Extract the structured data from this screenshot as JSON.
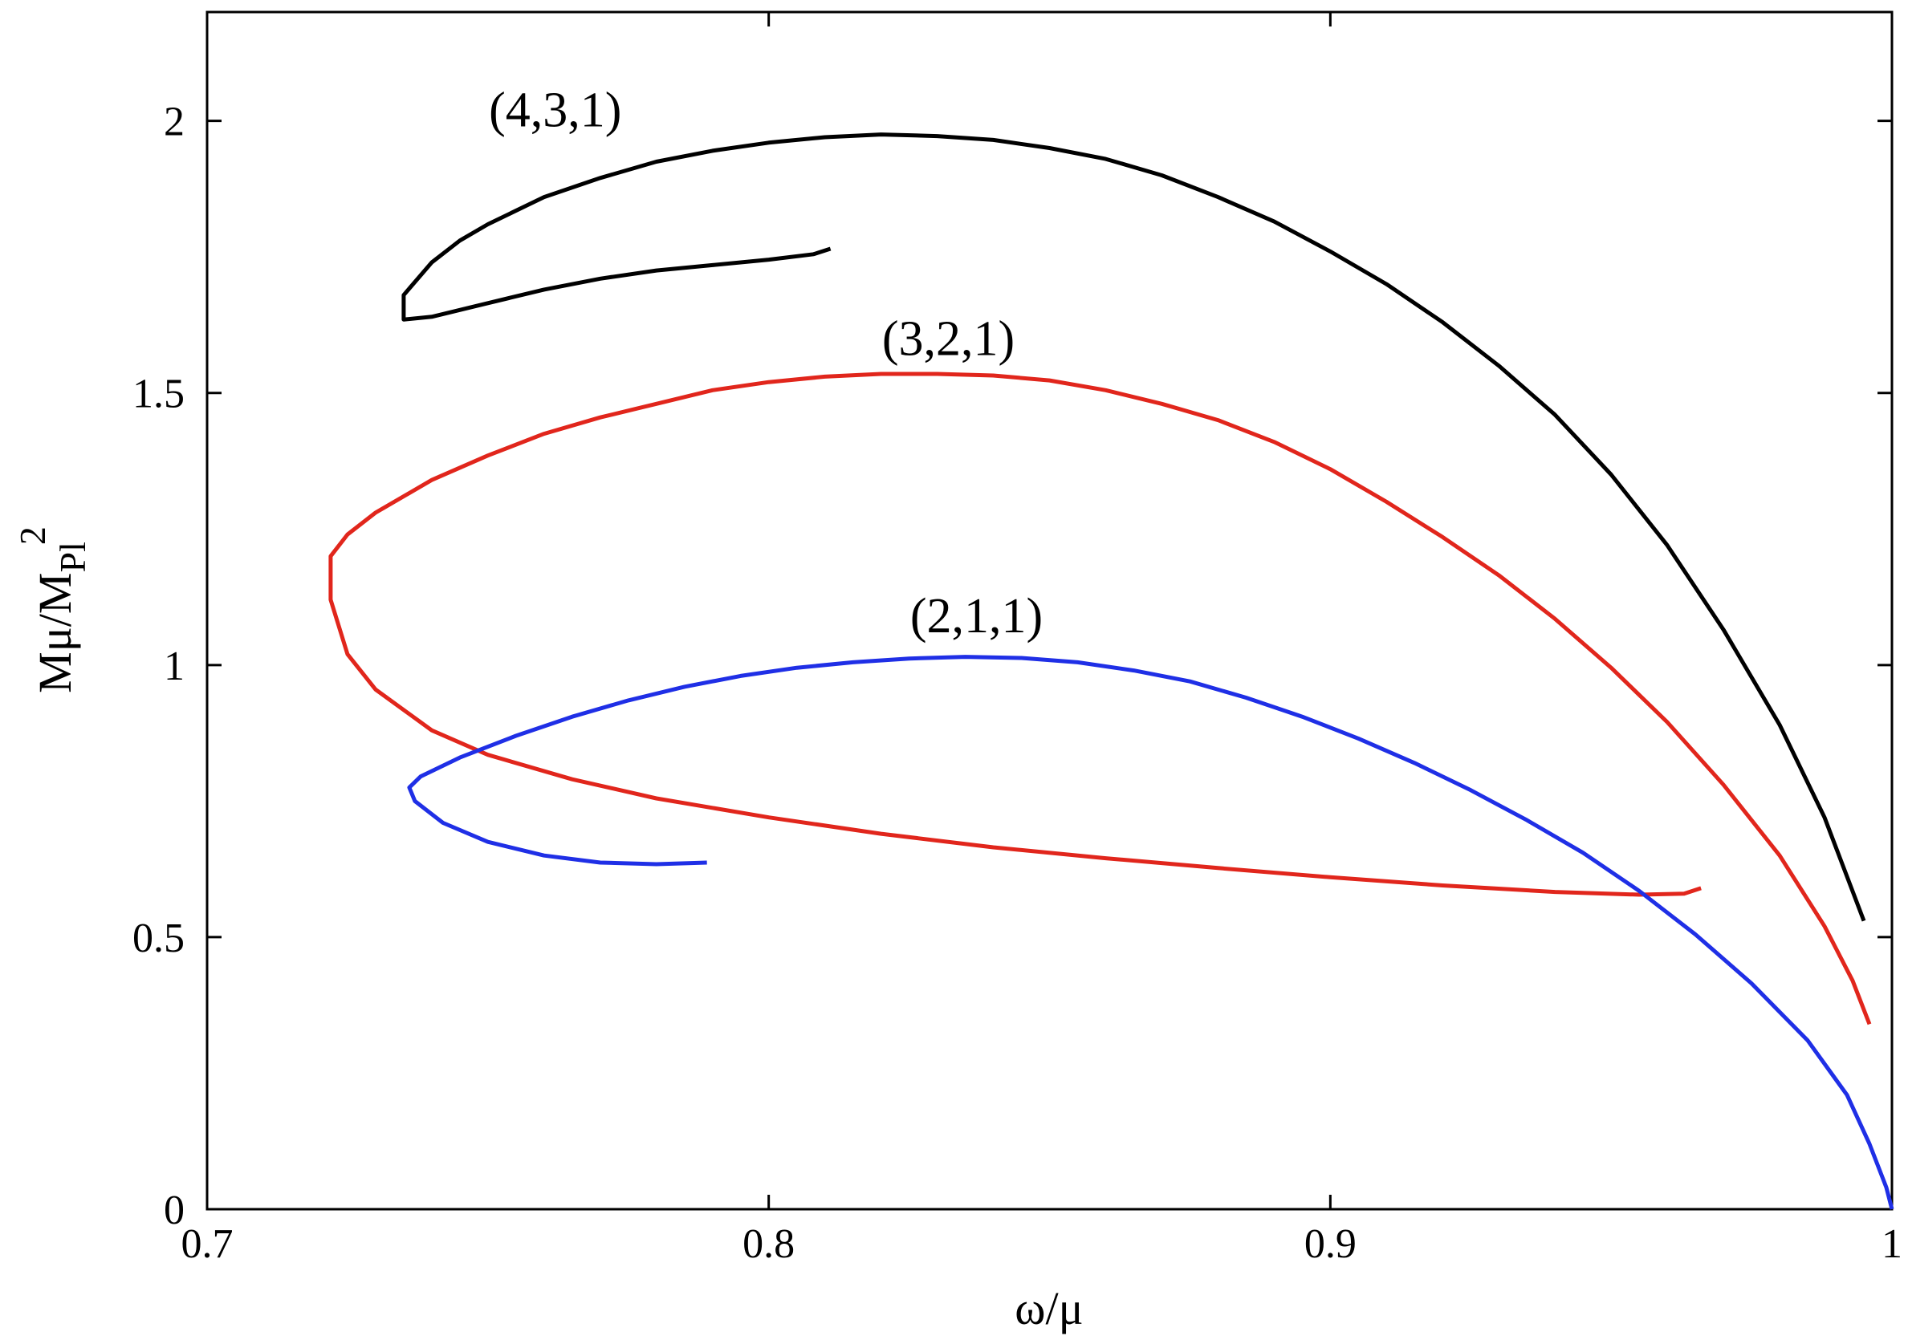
{
  "chart_data": {
    "type": "line",
    "title": "",
    "xlabel": "ω/μ",
    "ylabel_parts": {
      "base": "Mμ/M",
      "sub": "Pl",
      "sup": "2"
    },
    "xlim": [
      0.7,
      1.0
    ],
    "ylim": [
      0,
      2.2
    ],
    "xticks": [
      {
        "value": 0.7,
        "label": "0.7"
      },
      {
        "value": 0.8,
        "label": "0.8"
      },
      {
        "value": 0.9,
        "label": "0.9"
      },
      {
        "value": 1.0,
        "label": "1"
      }
    ],
    "yticks": [
      {
        "value": 0,
        "label": "0"
      },
      {
        "value": 0.5,
        "label": "0.5"
      },
      {
        "value": 1.0,
        "label": "1"
      },
      {
        "value": 1.5,
        "label": "1.5"
      },
      {
        "value": 2.0,
        "label": "2"
      }
    ],
    "grid": false,
    "series": [
      {
        "name": "(4,3,1)",
        "color": "#000000",
        "label_at": [
          0.762,
          1.99
        ],
        "points": [
          [
            0.811,
            1.765
          ],
          [
            0.808,
            1.755
          ],
          [
            0.8,
            1.745
          ],
          [
            0.79,
            1.735
          ],
          [
            0.78,
            1.725
          ],
          [
            0.77,
            1.71
          ],
          [
            0.76,
            1.69
          ],
          [
            0.75,
            1.665
          ],
          [
            0.74,
            1.64
          ],
          [
            0.735,
            1.635
          ],
          [
            0.735,
            1.68
          ],
          [
            0.74,
            1.74
          ],
          [
            0.745,
            1.78
          ],
          [
            0.75,
            1.81
          ],
          [
            0.76,
            1.86
          ],
          [
            0.77,
            1.895
          ],
          [
            0.78,
            1.925
          ],
          [
            0.79,
            1.945
          ],
          [
            0.8,
            1.96
          ],
          [
            0.81,
            1.97
          ],
          [
            0.82,
            1.975
          ],
          [
            0.83,
            1.972
          ],
          [
            0.84,
            1.965
          ],
          [
            0.85,
            1.95
          ],
          [
            0.86,
            1.93
          ],
          [
            0.87,
            1.9
          ],
          [
            0.88,
            1.86
          ],
          [
            0.89,
            1.815
          ],
          [
            0.9,
            1.76
          ],
          [
            0.91,
            1.7
          ],
          [
            0.92,
            1.63
          ],
          [
            0.93,
            1.55
          ],
          [
            0.94,
            1.46
          ],
          [
            0.95,
            1.35
          ],
          [
            0.96,
            1.22
          ],
          [
            0.97,
            1.065
          ],
          [
            0.98,
            0.89
          ],
          [
            0.988,
            0.72
          ],
          [
            0.995,
            0.53
          ]
        ]
      },
      {
        "name": "(3,2,1)",
        "color": "#e1261c",
        "label_at": [
          0.832,
          1.57
        ],
        "points": [
          [
            0.966,
            0.59
          ],
          [
            0.963,
            0.58
          ],
          [
            0.955,
            0.578
          ],
          [
            0.94,
            0.583
          ],
          [
            0.92,
            0.595
          ],
          [
            0.9,
            0.61
          ],
          [
            0.88,
            0.627
          ],
          [
            0.86,
            0.645
          ],
          [
            0.84,
            0.665
          ],
          [
            0.82,
            0.69
          ],
          [
            0.8,
            0.72
          ],
          [
            0.78,
            0.755
          ],
          [
            0.765,
            0.79
          ],
          [
            0.75,
            0.835
          ],
          [
            0.74,
            0.88
          ],
          [
            0.73,
            0.955
          ],
          [
            0.725,
            1.02
          ],
          [
            0.722,
            1.12
          ],
          [
            0.722,
            1.2
          ],
          [
            0.725,
            1.24
          ],
          [
            0.73,
            1.28
          ],
          [
            0.74,
            1.34
          ],
          [
            0.75,
            1.385
          ],
          [
            0.76,
            1.425
          ],
          [
            0.77,
            1.455
          ],
          [
            0.78,
            1.48
          ],
          [
            0.79,
            1.505
          ],
          [
            0.8,
            1.52
          ],
          [
            0.81,
            1.53
          ],
          [
            0.82,
            1.535
          ],
          [
            0.83,
            1.535
          ],
          [
            0.84,
            1.532
          ],
          [
            0.85,
            1.523
          ],
          [
            0.86,
            1.505
          ],
          [
            0.87,
            1.48
          ],
          [
            0.88,
            1.45
          ],
          [
            0.89,
            1.41
          ],
          [
            0.9,
            1.36
          ],
          [
            0.91,
            1.3
          ],
          [
            0.92,
            1.235
          ],
          [
            0.93,
            1.165
          ],
          [
            0.94,
            1.085
          ],
          [
            0.95,
            0.995
          ],
          [
            0.96,
            0.895
          ],
          [
            0.97,
            0.78
          ],
          [
            0.98,
            0.65
          ],
          [
            0.988,
            0.52
          ],
          [
            0.993,
            0.42
          ],
          [
            0.996,
            0.34
          ]
        ]
      },
      {
        "name": "(2,1,1)",
        "color": "#1f2fe6",
        "label_at": [
          0.837,
          1.06
        ],
        "points": [
          [
            0.789,
            0.637
          ],
          [
            0.78,
            0.634
          ],
          [
            0.77,
            0.637
          ],
          [
            0.76,
            0.65
          ],
          [
            0.75,
            0.675
          ],
          [
            0.742,
            0.71
          ],
          [
            0.737,
            0.75
          ],
          [
            0.736,
            0.775
          ],
          [
            0.738,
            0.795
          ],
          [
            0.745,
            0.83
          ],
          [
            0.755,
            0.87
          ],
          [
            0.765,
            0.905
          ],
          [
            0.775,
            0.935
          ],
          [
            0.785,
            0.96
          ],
          [
            0.795,
            0.98
          ],
          [
            0.805,
            0.995
          ],
          [
            0.815,
            1.005
          ],
          [
            0.825,
            1.012
          ],
          [
            0.835,
            1.015
          ],
          [
            0.845,
            1.013
          ],
          [
            0.855,
            1.005
          ],
          [
            0.865,
            0.99
          ],
          [
            0.875,
            0.97
          ],
          [
            0.885,
            0.94
          ],
          [
            0.895,
            0.905
          ],
          [
            0.905,
            0.865
          ],
          [
            0.915,
            0.82
          ],
          [
            0.925,
            0.77
          ],
          [
            0.935,
            0.715
          ],
          [
            0.945,
            0.655
          ],
          [
            0.955,
            0.585
          ],
          [
            0.965,
            0.505
          ],
          [
            0.975,
            0.415
          ],
          [
            0.985,
            0.31
          ],
          [
            0.992,
            0.21
          ],
          [
            0.996,
            0.12
          ],
          [
            0.999,
            0.04
          ],
          [
            1.0,
            0.0
          ]
        ]
      }
    ]
  }
}
